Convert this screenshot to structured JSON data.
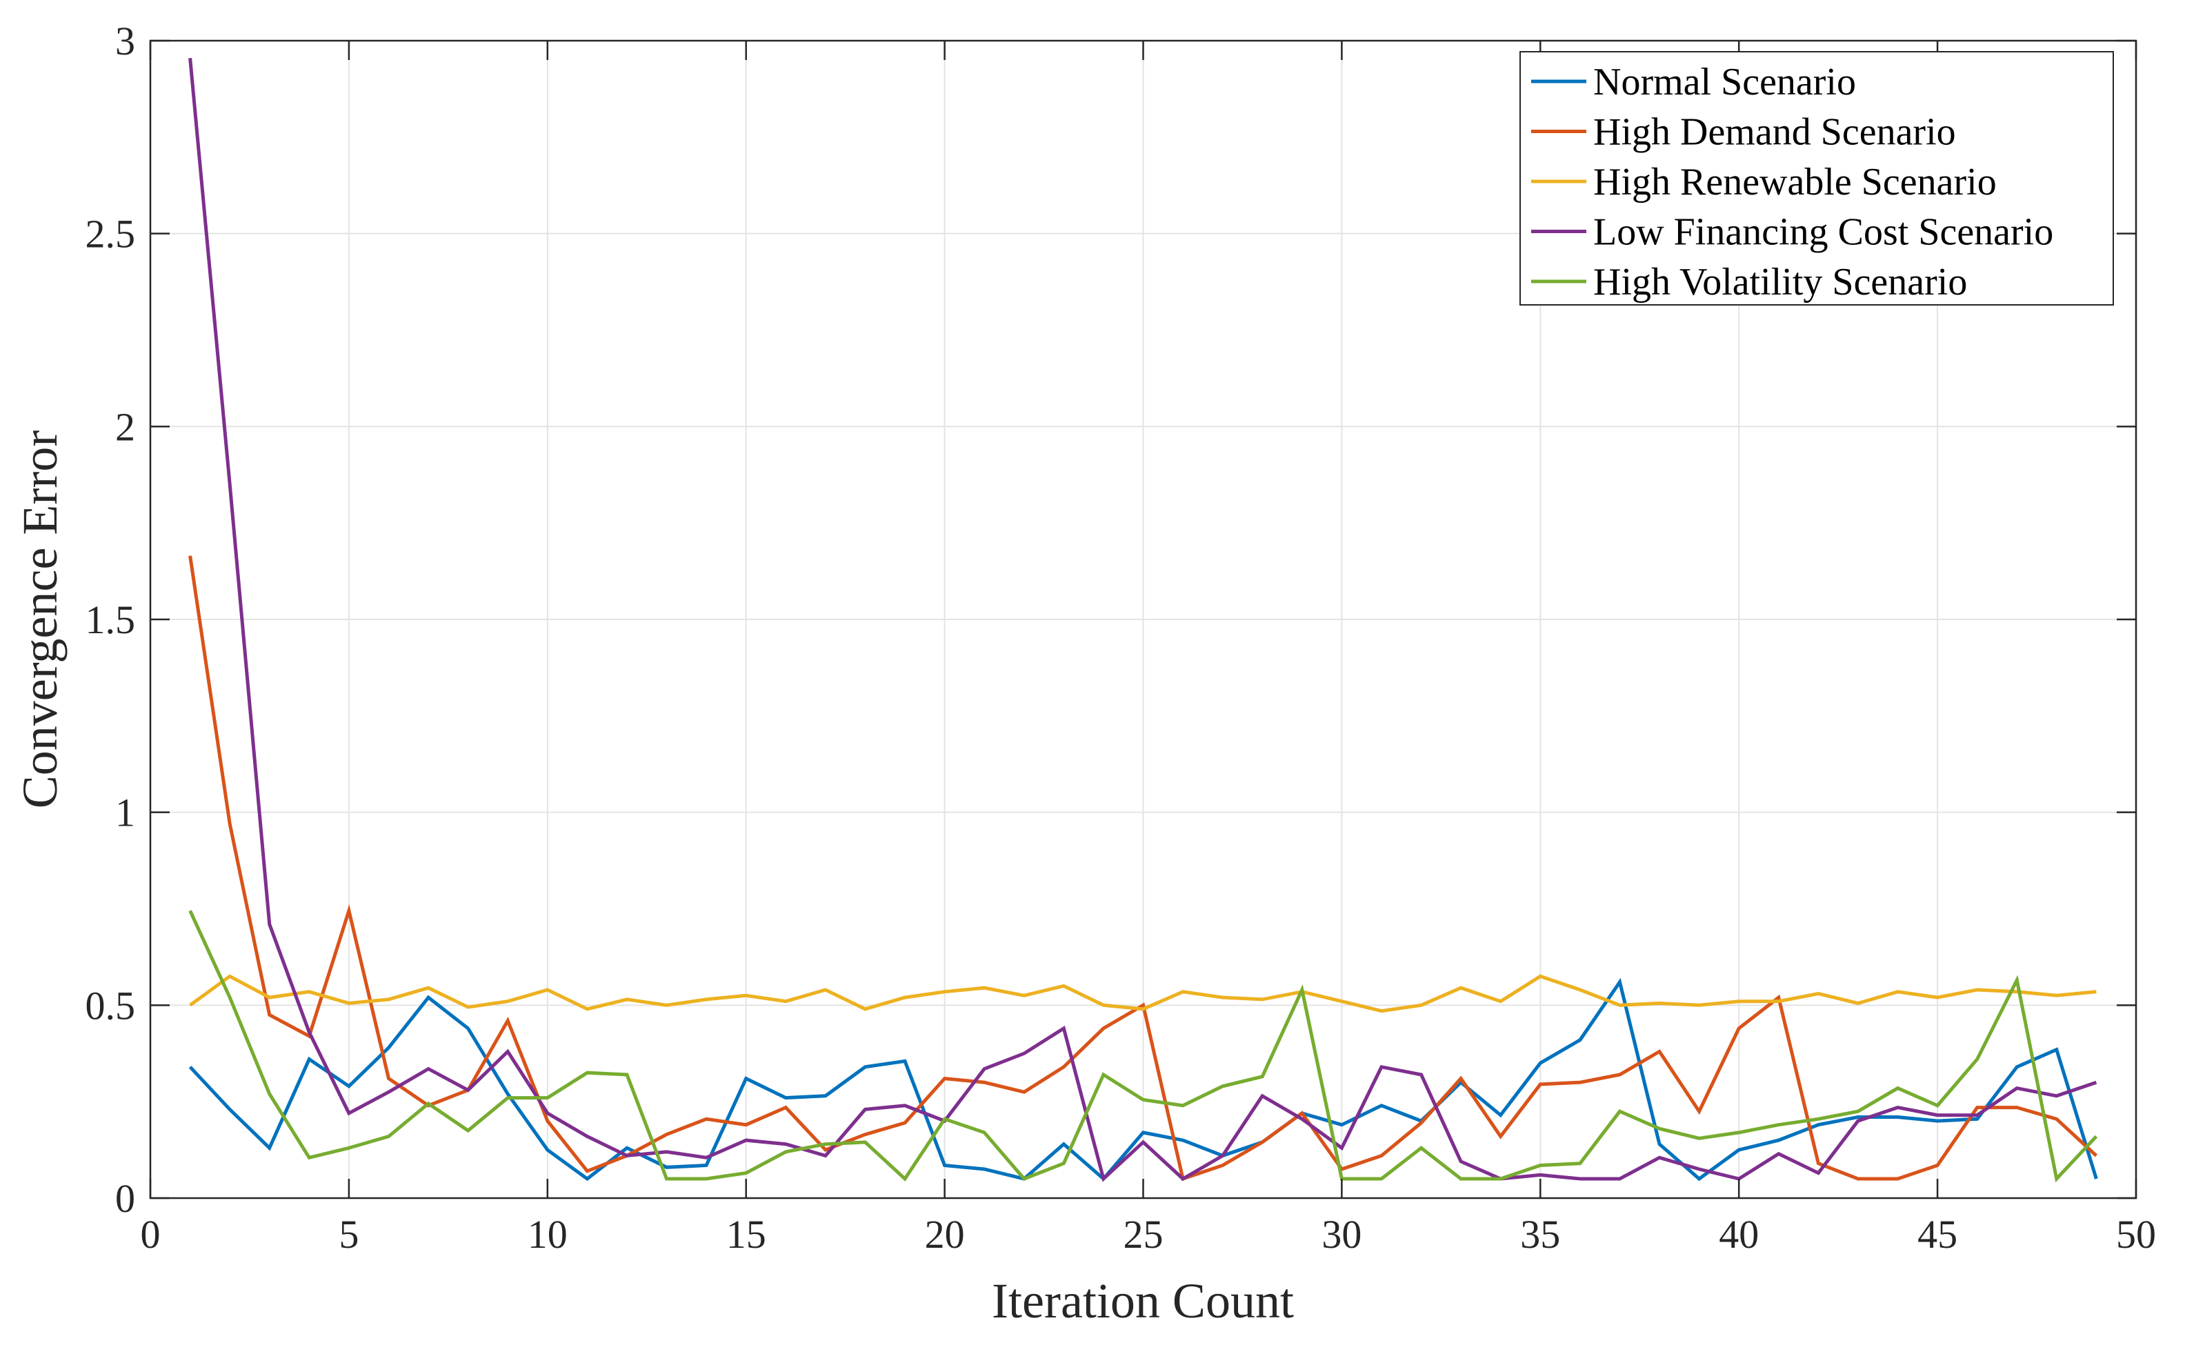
{
  "chart_data": {
    "type": "line",
    "title": "",
    "xlabel": "Iteration Count",
    "ylabel": "Convergence Error",
    "xlim": [
      0,
      50
    ],
    "ylim": [
      0,
      3
    ],
    "xticks": [
      "0",
      "5",
      "10",
      "15",
      "20",
      "25",
      "30",
      "35",
      "40",
      "45",
      "50"
    ],
    "yticks": [
      "0",
      "0.5",
      "1",
      "1.5",
      "2",
      "2.5",
      "3"
    ],
    "grid": true,
    "legend_position": "top-right",
    "x": [
      1,
      2,
      3,
      4,
      5,
      6,
      7,
      8,
      9,
      10,
      11,
      12,
      13,
      14,
      15,
      16,
      17,
      18,
      19,
      20,
      21,
      22,
      23,
      24,
      25,
      26,
      27,
      28,
      29,
      30,
      31,
      32,
      33,
      34,
      35,
      36,
      37,
      38,
      39,
      40,
      41,
      42,
      43,
      44,
      45,
      46,
      47,
      48,
      49
    ],
    "series": [
      {
        "name": "Normal Scenario",
        "color": "#0072BD",
        "values": [
          0.34,
          0.23,
          0.13,
          0.36,
          0.29,
          0.39,
          0.52,
          0.44,
          0.27,
          0.125,
          0.05,
          0.13,
          0.08,
          0.085,
          0.31,
          0.26,
          0.265,
          0.34,
          0.355,
          0.085,
          0.075,
          0.05,
          0.14,
          0.05,
          0.17,
          0.15,
          0.11,
          0.145,
          0.22,
          0.19,
          0.24,
          0.2,
          0.3,
          0.215,
          0.35,
          0.41,
          0.56,
          0.14,
          0.05,
          0.125,
          0.15,
          0.19,
          0.21,
          0.21,
          0.2,
          0.205,
          0.34,
          0.385,
          0.05
        ]
      },
      {
        "name": "High Demand Scenario",
        "color": "#D95319",
        "values": [
          1.665,
          0.97,
          0.475,
          0.42,
          0.745,
          0.31,
          0.24,
          0.28,
          0.46,
          0.2,
          0.07,
          0.11,
          0.165,
          0.205,
          0.19,
          0.235,
          0.125,
          0.165,
          0.195,
          0.31,
          0.3,
          0.275,
          0.34,
          0.44,
          0.5,
          0.05,
          0.085,
          0.145,
          0.22,
          0.075,
          0.11,
          0.195,
          0.31,
          0.16,
          0.295,
          0.3,
          0.32,
          0.38,
          0.225,
          0.44,
          0.52,
          0.09,
          0.05,
          0.05,
          0.085,
          0.235,
          0.235,
          0.205,
          0.11
        ]
      },
      {
        "name": "High Renewable Scenario",
        "color": "#EDB120",
        "values": [
          0.5,
          0.575,
          0.52,
          0.535,
          0.505,
          0.515,
          0.545,
          0.495,
          0.51,
          0.54,
          0.49,
          0.515,
          0.5,
          0.515,
          0.525,
          0.51,
          0.54,
          0.49,
          0.52,
          0.535,
          0.545,
          0.525,
          0.55,
          0.5,
          0.49,
          0.535,
          0.52,
          0.515,
          0.535,
          0.51,
          0.485,
          0.5,
          0.545,
          0.51,
          0.575,
          0.54,
          0.5,
          0.505,
          0.5,
          0.51,
          0.51,
          0.53,
          0.505,
          0.535,
          0.52,
          0.54,
          0.535,
          0.525,
          0.535
        ]
      },
      {
        "name": "Low Financing Cost Scenario",
        "color": "#7E2F8E",
        "values": [
          2.955,
          1.85,
          0.71,
          0.43,
          0.22,
          0.275,
          0.335,
          0.28,
          0.38,
          0.22,
          0.16,
          0.11,
          0.12,
          0.105,
          0.15,
          0.14,
          0.11,
          0.23,
          0.24,
          0.2,
          0.335,
          0.375,
          0.44,
          0.05,
          0.145,
          0.05,
          0.11,
          0.265,
          0.205,
          0.13,
          0.34,
          0.32,
          0.095,
          0.05,
          0.06,
          0.05,
          0.05,
          0.105,
          0.075,
          0.05,
          0.115,
          0.065,
          0.2,
          0.235,
          0.215,
          0.215,
          0.285,
          0.265,
          0.3
        ]
      },
      {
        "name": "High Volatility Scenario",
        "color": "#77AC30",
        "values": [
          0.745,
          0.52,
          0.27,
          0.105,
          0.13,
          0.16,
          0.245,
          0.175,
          0.26,
          0.26,
          0.325,
          0.32,
          0.05,
          0.05,
          0.065,
          0.12,
          0.14,
          0.145,
          0.05,
          0.205,
          0.17,
          0.05,
          0.09,
          0.32,
          0.255,
          0.24,
          0.29,
          0.315,
          0.54,
          0.05,
          0.05,
          0.13,
          0.05,
          0.05,
          0.085,
          0.09,
          0.225,
          0.18,
          0.155,
          0.17,
          0.19,
          0.205,
          0.225,
          0.285,
          0.24,
          0.36,
          0.565,
          0.05,
          0.16
        ]
      }
    ]
  }
}
